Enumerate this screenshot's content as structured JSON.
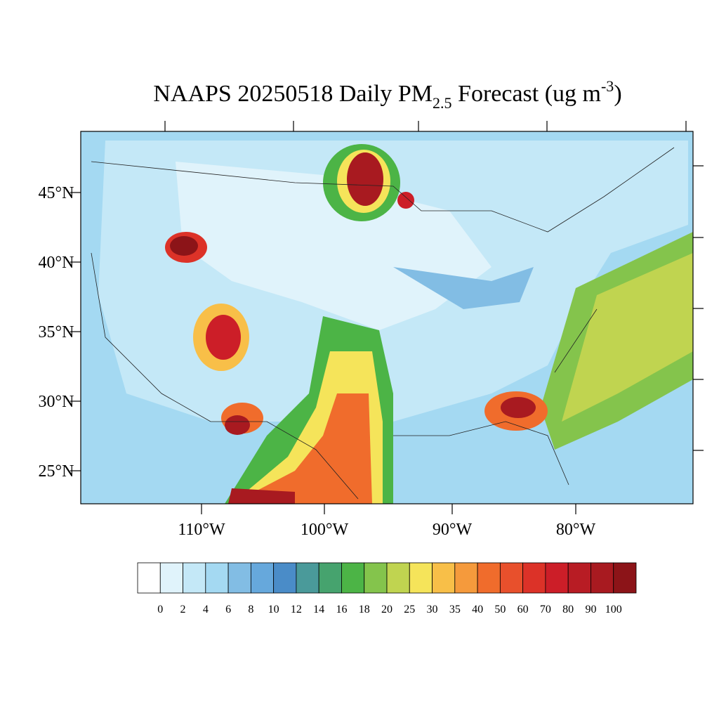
{
  "title": {
    "prefix": "NAAPS 20250518 Daily PM",
    "subscript": "2.5",
    "middle": " Forecast (ug m",
    "superscript": "-3",
    "suffix": ")"
  },
  "lat_labels": [
    "45°N",
    "40°N",
    "35°N",
    "30°N",
    "25°N"
  ],
  "lon_labels": [
    "110°W",
    "100°W",
    "90°W",
    "80°W"
  ],
  "colorbar": {
    "levels": [
      "0",
      "2",
      "4",
      "6",
      "8",
      "10",
      "12",
      "14",
      "16",
      "18",
      "20",
      "25",
      "30",
      "35",
      "40",
      "50",
      "60",
      "70",
      "80",
      "90",
      "100"
    ],
    "colors": [
      "#ffffff",
      "#e0f3fb",
      "#c4e8f7",
      "#a4d9f2",
      "#82bde4",
      "#66a8dc",
      "#4a8cc8",
      "#4a9a9a",
      "#46a36e",
      "#4cb446",
      "#84c44c",
      "#c0d450",
      "#f5e45a",
      "#f8bf48",
      "#f59a3c",
      "#f06c2c",
      "#e8502c",
      "#dc3228",
      "#cc1e28",
      "#b81c24",
      "#a81a20",
      "#8c1418"
    ]
  }
}
